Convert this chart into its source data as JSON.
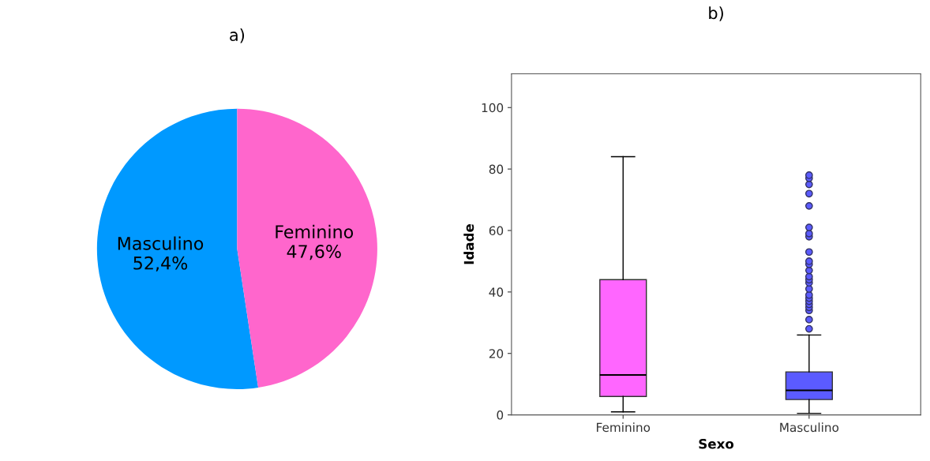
{
  "chart_data": [
    {
      "type": "pie",
      "title": "a)",
      "categories": [
        "Masculino",
        "Feminino"
      ],
      "values": [
        52.4,
        47.6
      ],
      "colors": [
        "#0099ff",
        "#ff66cc"
      ],
      "value_labels": [
        "52,4%",
        "47,6%"
      ]
    },
    {
      "type": "box",
      "title": "b)",
      "xlabel": "Sexo",
      "ylabel": "Idade",
      "categories": [
        "Feminino",
        "Masculino"
      ],
      "colors": [
        "#ff66ff",
        "#5b5bff"
      ],
      "ylim": [
        0,
        111
      ],
      "yticks": [
        0,
        20,
        40,
        60,
        80,
        100
      ],
      "grid": false,
      "boxes": [
        {
          "low": 1,
          "q1": 6,
          "median": 13,
          "q3": 44,
          "high": 84
        },
        {
          "low": 0.5,
          "q1": 5,
          "median": 8,
          "q3": 14,
          "high": 26,
          "outliers": [
            28,
            31,
            34,
            35,
            36,
            37,
            38,
            39,
            41,
            43,
            44,
            45,
            47,
            49,
            50,
            53,
            58,
            59,
            61,
            68,
            72,
            75,
            77,
            78
          ]
        }
      ]
    }
  ]
}
